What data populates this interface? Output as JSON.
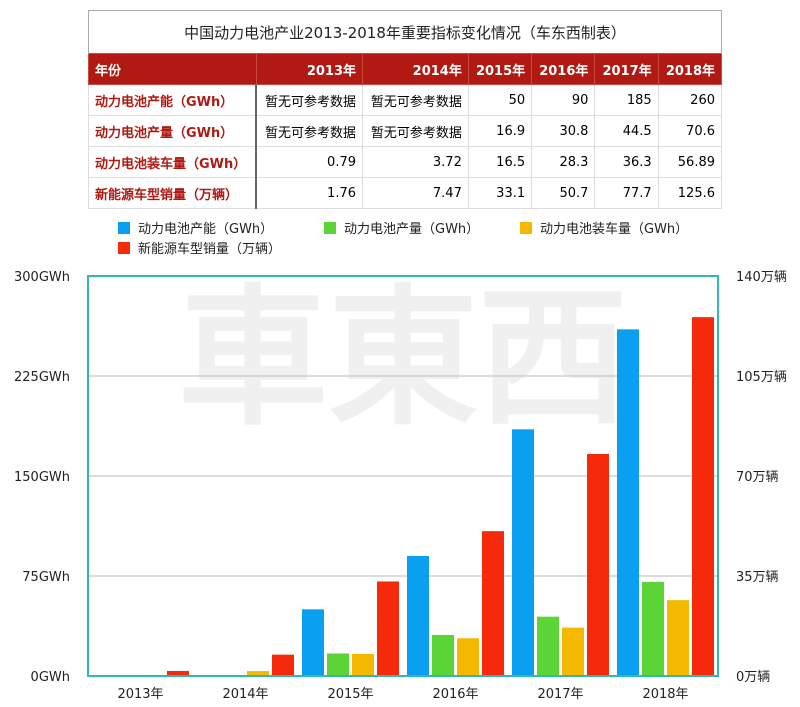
{
  "table": {
    "title": "中国动力电池产业2013-2018年重要指标变化情况（车东西制表）",
    "header": [
      "年份",
      "2013年",
      "2014年",
      "2015年",
      "2016年",
      "2017年",
      "2018年"
    ],
    "rows": [
      [
        "动力电池产能（GWh）",
        "暂无可参考数据",
        "暂无可参考数据",
        "50",
        "90",
        "185",
        "260"
      ],
      [
        "动力电池产量（GWh）",
        "暂无可参考数据",
        "暂无可参考数据",
        "16.9",
        "30.8",
        "44.5",
        "70.6"
      ],
      [
        "动力电池装车量（GWh）",
        "0.79",
        "3.72",
        "16.5",
        "28.3",
        "36.3",
        "56.89"
      ],
      [
        "新能源车型销量（万辆）",
        "1.76",
        "7.47",
        "33.1",
        "50.7",
        "77.7",
        "125.6"
      ]
    ]
  },
  "chart_data": {
    "type": "bar",
    "title": "",
    "categories": [
      "2013年",
      "2014年",
      "2015年",
      "2016年",
      "2017年",
      "2018年"
    ],
    "series": [
      {
        "name": "动力电池产能（GWh）",
        "axis": "left",
        "color": "#0a9ff0",
        "values": [
          null,
          null,
          50,
          90,
          185,
          260
        ]
      },
      {
        "name": "动力电池产量（GWh）",
        "axis": "left",
        "color": "#5ad535",
        "values": [
          null,
          null,
          16.9,
          30.8,
          44.5,
          70.6
        ]
      },
      {
        "name": "动力电池装车量（GWh）",
        "axis": "left",
        "color": "#f5b800",
        "values": [
          0.79,
          3.72,
          16.5,
          28.3,
          36.3,
          56.89
        ]
      },
      {
        "name": "新能源车型销量（万辆）",
        "axis": "right",
        "color": "#f52a0a",
        "values": [
          1.76,
          7.47,
          33.1,
          50.7,
          77.7,
          125.6
        ]
      }
    ],
    "left_axis": {
      "ylim": [
        0,
        300
      ],
      "ticks": [
        "0GWh",
        "75GWh",
        "150GWh",
        "225GWh",
        "300GWh"
      ]
    },
    "right_axis": {
      "ylim": [
        0,
        140
      ],
      "ticks": [
        "0万辆",
        "35万辆",
        "70万辆",
        "105万辆",
        "140万辆"
      ]
    },
    "grid": true,
    "legend_placement": "top",
    "frame_color": "#2fb8b8"
  },
  "watermark": "車東西"
}
